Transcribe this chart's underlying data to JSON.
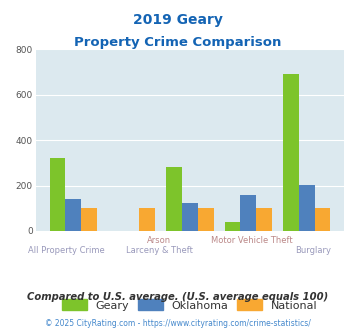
{
  "title_line1": "2019 Geary",
  "title_line2": "Property Crime Comparison",
  "geary_vals": [
    320,
    0,
    282,
    40,
    690
  ],
  "oklahoma_vals": [
    143,
    0,
    123,
    160,
    203
  ],
  "national_vals": [
    100,
    100,
    100,
    100,
    100
  ],
  "colors": {
    "Geary": "#7dc42b",
    "Oklahoma": "#4f81bd",
    "National": "#f8a832"
  },
  "ylim": [
    0,
    800
  ],
  "yticks": [
    0,
    200,
    400,
    600,
    800
  ],
  "plot_bg": "#dce9ef",
  "title_color": "#1464b4",
  "xlabel_top_color": "#bb8888",
  "xlabel_bot_color": "#9999bb",
  "footer_text": "Compared to U.S. average. (U.S. average equals 100)",
  "copyright_text": "© 2025 CityRating.com - https://www.cityrating.com/crime-statistics/",
  "footer_color": "#333333",
  "copyright_color": "#4488cc"
}
